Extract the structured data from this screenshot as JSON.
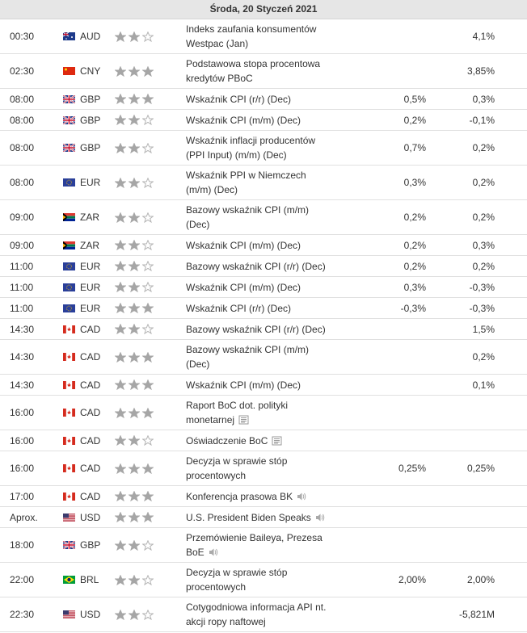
{
  "header": {
    "title": "Środa, 20 Styczeń 2021"
  },
  "table": {
    "rows": [
      {
        "time": "00:30",
        "currency": "AUD",
        "importance": 2,
        "event": [
          "Indeks zaufania konsumentów",
          "Westpac (Jan)"
        ],
        "previous": "4,1%"
      },
      {
        "time": "02:30",
        "currency": "CNY",
        "importance": 3,
        "event": [
          "Podstawowa stopa procentowa",
          "kredytów PBoC"
        ],
        "previous": "3,85%"
      },
      {
        "time": "08:00",
        "currency": "GBP",
        "importance": 3,
        "event": [
          "Wskaźnik CPI (r/r) (Dec)"
        ],
        "forecast": "0,5%",
        "previous": "0,3%"
      },
      {
        "time": "08:00",
        "currency": "GBP",
        "importance": 2,
        "event": [
          "Wskaźnik CPI (m/m) (Dec)"
        ],
        "forecast": "0,2%",
        "previous": "-0,1%"
      },
      {
        "time": "08:00",
        "currency": "GBP",
        "importance": 2,
        "event": [
          "Wskaźnik inflacji producentów",
          "(PPI Input) (m/m) (Dec)"
        ],
        "forecast": "0,7%",
        "previous": "0,2%"
      },
      {
        "time": "08:00",
        "currency": "EUR",
        "importance": 2,
        "event": [
          "Wskaźnik PPI w Niemczech",
          "(m/m) (Dec)"
        ],
        "forecast": "0,3%",
        "previous": "0,2%"
      },
      {
        "time": "09:00",
        "currency": "ZAR",
        "importance": 2,
        "event": [
          "Bazowy wskaźnik CPI (m/m)",
          "(Dec)"
        ],
        "forecast": "0,2%",
        "previous": "0,2%"
      },
      {
        "time": "09:00",
        "currency": "ZAR",
        "importance": 2,
        "event": [
          "Wskaźnik CPI (m/m) (Dec)"
        ],
        "forecast": "0,2%",
        "previous": "0,3%"
      },
      {
        "time": "11:00",
        "currency": "EUR",
        "importance": 2,
        "event": [
          "Bazowy wskaźnik CPI (r/r) (Dec)"
        ],
        "forecast": "0,2%",
        "previous": "0,2%"
      },
      {
        "time": "11:00",
        "currency": "EUR",
        "importance": 2,
        "event": [
          "Wskaźnik CPI (m/m) (Dec)"
        ],
        "forecast": "0,3%",
        "previous": "-0,3%"
      },
      {
        "time": "11:00",
        "currency": "EUR",
        "importance": 3,
        "event": [
          "Wskaźnik CPI (r/r) (Dec)"
        ],
        "forecast": "-0,3%",
        "previous": "-0,3%"
      },
      {
        "time": "14:30",
        "currency": "CAD",
        "importance": 2,
        "event": [
          "Bazowy wskaźnik CPI (r/r) (Dec)"
        ],
        "previous": "1,5%"
      },
      {
        "time": "14:30",
        "currency": "CAD",
        "importance": 3,
        "event": [
          "Bazowy wskaźnik CPI (m/m)",
          "(Dec)"
        ],
        "previous": "0,2%"
      },
      {
        "time": "14:30",
        "currency": "CAD",
        "importance": 3,
        "event": [
          "Wskaźnik CPI (m/m) (Dec)"
        ],
        "previous": "0,1%"
      },
      {
        "time": "16:00",
        "currency": "CAD",
        "importance": 3,
        "event": [
          "Raport BoC dot. polityki",
          "monetarnej"
        ],
        "icon": "report"
      },
      {
        "time": "16:00",
        "currency": "CAD",
        "importance": 2,
        "event": [
          "Oświadczenie BoC"
        ],
        "icon": "report"
      },
      {
        "time": "16:00",
        "currency": "CAD",
        "importance": 3,
        "event": [
          "Decyzja w sprawie stóp",
          "procentowych"
        ],
        "forecast": "0,25%",
        "previous": "0,25%"
      },
      {
        "time": "17:00",
        "currency": "CAD",
        "importance": 3,
        "event": [
          "Konferencja prasowa BK"
        ],
        "icon": "speech"
      },
      {
        "time": "Aprox.",
        "currency": "USD",
        "importance": 3,
        "event": [
          "U.S. President Biden Speaks"
        ],
        "icon": "speech"
      },
      {
        "time": "18:00",
        "currency": "GBP",
        "importance": 2,
        "event": [
          "Przemówienie Baileya, Prezesa",
          "BoE"
        ],
        "icon": "speech"
      },
      {
        "time": "22:00",
        "currency": "BRL",
        "importance": 2,
        "event": [
          "Decyzja w sprawie stóp",
          "procentowych"
        ],
        "forecast": "2,00%",
        "previous": "2,00%"
      },
      {
        "time": "22:30",
        "currency": "USD",
        "importance": 2,
        "event": [
          "Cotygodniowa informacja API nt.",
          "akcji ropy naftowej"
        ],
        "previous": "-5,821M"
      }
    ]
  }
}
